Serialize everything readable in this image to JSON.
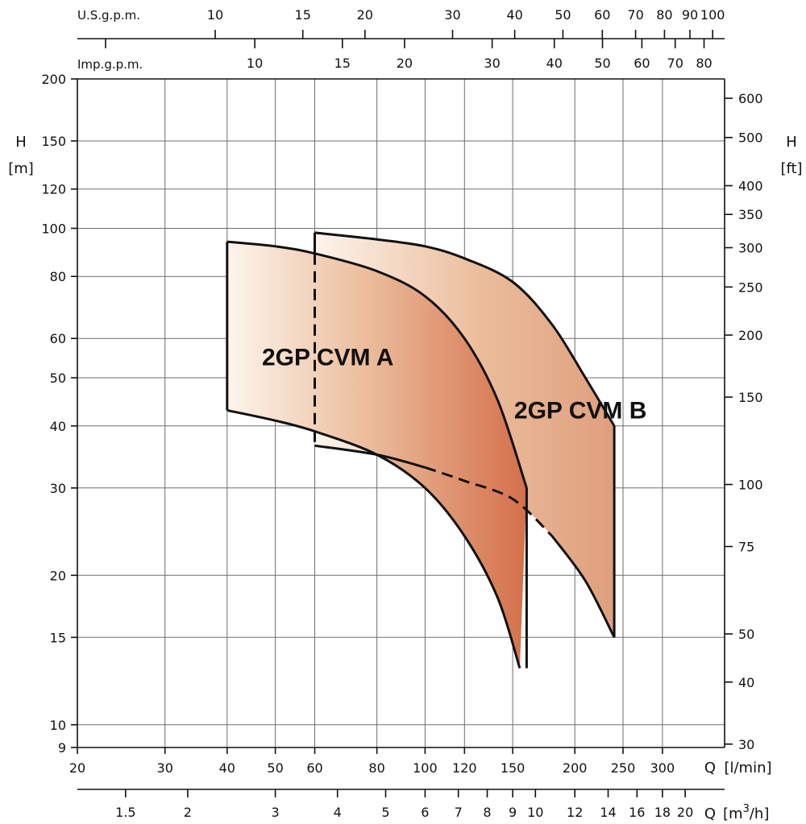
{
  "chart_data": {
    "type": "area",
    "title": "",
    "x_scale": "log",
    "y_scale": "log",
    "xlim": [
      20,
      400
    ],
    "ylim": [
      9,
      200
    ],
    "grid": true,
    "axes": {
      "left": {
        "label": "H",
        "unit": "[m]",
        "ticks": [
          9,
          10,
          15,
          20,
          30,
          40,
          50,
          60,
          80,
          100,
          120,
          150,
          200
        ],
        "tick_labels": [
          "9",
          "10",
          "15",
          "20",
          "30",
          "40",
          "50",
          "60",
          "80",
          "100",
          "120",
          "150",
          "200"
        ]
      },
      "right": {
        "label": "H",
        "unit": "[ft]",
        "ticks_ft": [
          30,
          40,
          50,
          75,
          100,
          150,
          200,
          250,
          300,
          350,
          400,
          500,
          600
        ],
        "tick_labels": [
          "30",
          "40",
          "50",
          "75",
          "100",
          "150",
          "200",
          "250",
          "300",
          "350",
          "400",
          "500",
          "600"
        ]
      },
      "bottom_lpm": {
        "label": "Q",
        "unit": "[l/min]",
        "ticks": [
          20,
          30,
          40,
          50,
          60,
          80,
          100,
          120,
          150,
          200,
          250,
          300
        ],
        "tick_labels": [
          "20",
          "30",
          "40",
          "50",
          "60",
          "80",
          "100",
          "120",
          "150",
          "200",
          "250",
          "300"
        ]
      },
      "bottom_m3h": {
        "label": "Q",
        "unit_prefix": "[m",
        "unit_sup": "3",
        "unit_suffix": "/h]",
        "ticks": [
          1.5,
          2,
          3,
          4,
          5,
          6,
          7,
          8,
          9,
          10,
          12,
          14,
          16,
          18,
          20
        ],
        "tick_labels": [
          "1.5",
          "2",
          "3",
          "4",
          "5",
          "6",
          "7",
          "8",
          "9",
          "10",
          "12",
          "14",
          "16",
          "18",
          "20"
        ]
      },
      "top_usgpm": {
        "label": "U.S.g.p.m.",
        "ticks": [
          10,
          15,
          20,
          30,
          40,
          50,
          60,
          70,
          80,
          90,
          100
        ],
        "tick_labels": [
          "10",
          "15",
          "20",
          "30",
          "40",
          "50",
          "60",
          "70",
          "80",
          "90",
          "100"
        ]
      },
      "top_impgpm": {
        "label": "Imp.g.p.m.",
        "ticks": [
          10,
          15,
          20,
          30,
          40,
          50,
          60,
          70,
          80
        ],
        "tick_labels": [
          "10",
          "15",
          "20",
          "30",
          "40",
          "50",
          "60",
          "70",
          "80"
        ]
      }
    },
    "series": [
      {
        "name": "2GP CVM A",
        "upper_curve": [
          [
            40,
            94
          ],
          [
            50,
            92
          ],
          [
            60,
            89
          ],
          [
            80,
            82
          ],
          [
            100,
            73
          ],
          [
            120,
            60
          ],
          [
            140,
            45
          ],
          [
            160,
            30
          ]
        ],
        "lower_curve": [
          [
            40,
            43
          ],
          [
            50,
            41
          ],
          [
            60,
            39
          ],
          [
            80,
            35
          ],
          [
            100,
            30
          ],
          [
            120,
            24
          ],
          [
            140,
            18
          ],
          [
            155,
            13
          ]
        ],
        "q_min": 40,
        "q_max": 160
      },
      {
        "name": "2GP CVM B",
        "upper_curve": [
          [
            60,
            98
          ],
          [
            80,
            95
          ],
          [
            100,
            92
          ],
          [
            120,
            87
          ],
          [
            150,
            78
          ],
          [
            180,
            64
          ],
          [
            210,
            50
          ],
          [
            240,
            40
          ]
        ],
        "lower_curve": [
          [
            60,
            36.5
          ],
          [
            80,
            35
          ],
          [
            100,
            33
          ],
          [
            120,
            31
          ],
          [
            150,
            28.5
          ],
          [
            180,
            24
          ],
          [
            210,
            19.5
          ],
          [
            240,
            15
          ]
        ],
        "q_min": 60,
        "q_max": 240,
        "dashed_overlap": true
      }
    ],
    "colors": {
      "fill_light": "#fdf4ec",
      "fill_dark": "#d4704a",
      "line": "#111111",
      "grid": "#6e6e6e"
    }
  }
}
